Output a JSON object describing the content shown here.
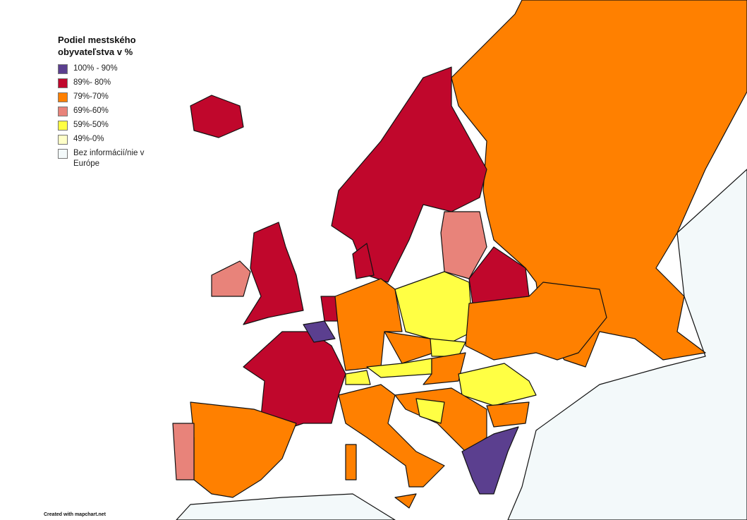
{
  "legend": {
    "title_lines": [
      "Podiel mestského",
      "obyvateľstva v %"
    ],
    "items": [
      {
        "label": "100% - 90%",
        "color": "#5b3f8f"
      },
      {
        "label": "89%- 80%",
        "color": "#c0072c"
      },
      {
        "label": "79%-70%",
        "color": "#ff8000"
      },
      {
        "label": "69%-60%",
        "color": "#e8837a"
      },
      {
        "label": "59%-50%",
        "color": "#ffff44"
      },
      {
        "label": "49%-0%",
        "color": "#ffffc8"
      },
      {
        "label": "Bez informácií/nie v Európe",
        "color": "#f3f9fa"
      }
    ]
  },
  "footer": "Created with mapchart.net"
}
